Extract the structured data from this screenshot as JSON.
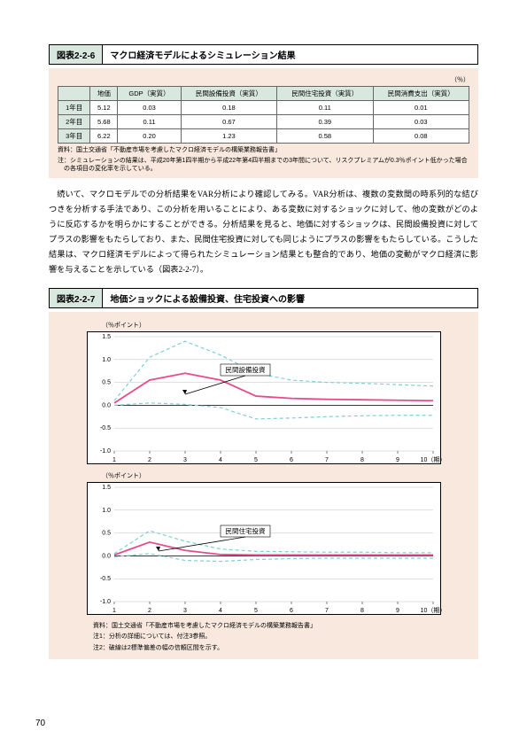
{
  "page_number": "70",
  "section1": {
    "label": "図表2-2-6",
    "title": "マクロ経済モデルによるシミュレーション結果",
    "unit": "（％）",
    "table": {
      "columns": [
        "",
        "地価",
        "GDP（実質）",
        "民間設備投資（実質）",
        "民間住宅投資（実質）",
        "民間消費支出（実質）"
      ],
      "rows": [
        [
          "1年目",
          "5.12",
          "0.03",
          "0.18",
          "0.11",
          "0.01"
        ],
        [
          "2年目",
          "5.68",
          "0.11",
          "0.67",
          "0.39",
          "0.03"
        ],
        [
          "3年目",
          "6.22",
          "0.20",
          "1.23",
          "0.58",
          "0.08"
        ]
      ]
    },
    "source": "資料：国土交通省「不動産市場を考慮したマクロ経済モデルの構築業務報告書」",
    "note": "注：シミュレーションの結果は、平成20年第1四半期から平成22年第4四半期までの3年間について、リスクプレミアムが0.3％ポイント低かった場合の各項目の変化率を示している。"
  },
  "body_text": "続いて、マクロモデルでの分析結果をVAR分析により確認してみる。VAR分析は、複数の変数間の時系列的な結びつきを分析する手法であり、この分析を用いることにより、ある変数に対するショックに対して、他の変数がどのように反応するかを明らかにすることができる。分析結果を見ると、地価に対するショックは、民間設備投資に対してプラスの影響をもたらしており、また、民間住宅投資に対しても同じようにプラスの影響をもたらしている。こうした結果は、マクロ経済モデルによって得られたシミュレーション結果とも整合的であり、地価の変動がマクロ経済に影響を与えることを示している（図表2-2-7）。",
  "section2": {
    "label": "図表2-2-7",
    "title": "地価ショックによる設備投資、住宅投資への影響",
    "chart1": {
      "ylabel": "（％ポイント）",
      "callout_label": "民間設備投資",
      "yticks": [
        "1.5",
        "1.0",
        "0.5",
        "0.0",
        "-0.5",
        "-1.0"
      ],
      "xticks": [
        "1",
        "2",
        "3",
        "4",
        "5",
        "6",
        "7",
        "8",
        "9",
        "10（期）"
      ],
      "main_color": "#e84a8e",
      "ci_color": "#7dd0d8",
      "grid_color": "#c0c0c0",
      "ylim": [
        -1.0,
        1.5
      ],
      "main_values": [
        0.05,
        0.55,
        0.7,
        0.55,
        0.2,
        0.15,
        0.13,
        0.12,
        0.11,
        0.1
      ],
      "upper_values": [
        0.1,
        1.05,
        1.4,
        1.1,
        0.7,
        0.55,
        0.5,
        0.48,
        0.45,
        0.42
      ],
      "lower_values": [
        0.0,
        0.05,
        0.02,
        -0.05,
        -0.3,
        -0.28,
        -0.25,
        -0.23,
        -0.22,
        -0.22
      ]
    },
    "chart2": {
      "ylabel": "（％ポイント）",
      "callout_label": "民間住宅投資",
      "yticks": [
        "1.5",
        "1.0",
        "0.5",
        "0.0",
        "-0.5",
        "-1.0"
      ],
      "xticks": [
        "1",
        "2",
        "3",
        "4",
        "5",
        "6",
        "7",
        "8",
        "9",
        "10（期）"
      ],
      "main_color": "#e84a8e",
      "ci_color": "#7dd0d8",
      "grid_color": "#c0c0c0",
      "ylim": [
        -1.0,
        1.5
      ],
      "main_values": [
        0.02,
        0.3,
        0.12,
        0.03,
        0.02,
        0.02,
        0.02,
        0.02,
        0.02,
        0.02
      ],
      "upper_values": [
        0.05,
        0.55,
        0.32,
        0.15,
        0.1,
        0.09,
        0.08,
        0.08,
        0.07,
        0.07
      ],
      "lower_values": [
        -0.02,
        0.05,
        -0.1,
        -0.12,
        -0.08,
        -0.06,
        -0.05,
        -0.05,
        -0.05,
        -0.05
      ]
    },
    "source": "資料：国土交通省「不動産市場を考慮したマクロ経済モデルの構築業務報告書」",
    "note1": "注1：分析の詳細については、付注3参照。",
    "note2": "注2：破線は2標準偏差の幅の信頼区間を示す。"
  }
}
